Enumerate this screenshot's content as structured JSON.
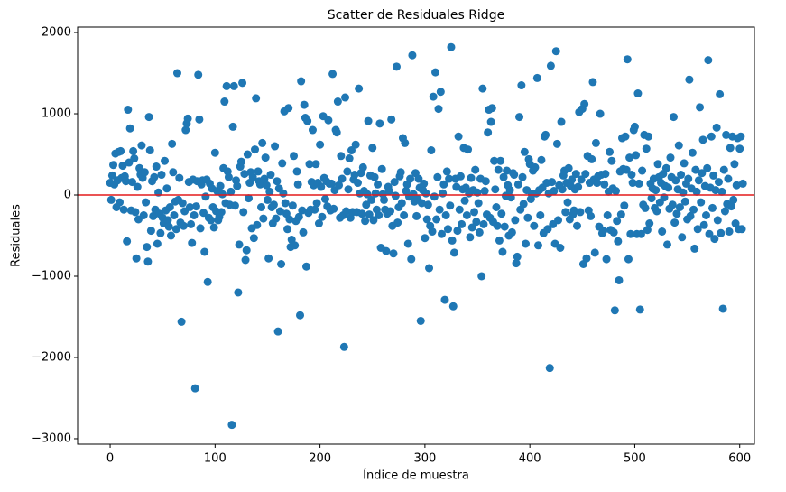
{
  "chart_data": {
    "type": "scatter",
    "title": "Scatter de Residuales Ridge",
    "x_label": "Índice de muestra",
    "y_label": "Residuales",
    "xlim": [
      -31,
      614
    ],
    "ylim": [
      -3067,
      2067
    ],
    "xticks": [
      0,
      100,
      200,
      300,
      400,
      500,
      600
    ],
    "yticks": [
      {
        "value": -3000,
        "label": "−3000"
      },
      {
        "value": -2000,
        "label": "−2000"
      },
      {
        "value": -1000,
        "label": "−1000"
      },
      0,
      1000,
      2000
    ],
    "hline": 0,
    "hline_color": "#e41a1c",
    "series": [
      {
        "color": "#1f77b4",
        "x": [
          0,
          1,
          2,
          3,
          4,
          5,
          6,
          7,
          8,
          9,
          10,
          11,
          12,
          13,
          14,
          15,
          16,
          17,
          18,
          19,
          20,
          21,
          22,
          23,
          24,
          25,
          26,
          27,
          28,
          29,
          30,
          31,
          32,
          33,
          34,
          35,
          36,
          37,
          38,
          39,
          40,
          41,
          42,
          43,
          44,
          45,
          46,
          47,
          48,
          49,
          50,
          51,
          52,
          53,
          54,
          55,
          56,
          57,
          58,
          59,
          60,
          61,
          62,
          63,
          64,
          65,
          66,
          67,
          68,
          69,
          70,
          71,
          72,
          73,
          74,
          75,
          76,
          77,
          78,
          79,
          80,
          81,
          82,
          83,
          84,
          85,
          86,
          87,
          88,
          89,
          90,
          91,
          92,
          93,
          94,
          95,
          96,
          97,
          98,
          99,
          100,
          101,
          102,
          103,
          104,
          105,
          106,
          107,
          108,
          109,
          110,
          111,
          112,
          113,
          114,
          115,
          116,
          117,
          118,
          119,
          120,
          121,
          122,
          123,
          124,
          125,
          126,
          127,
          128,
          129,
          130,
          131,
          132,
          133,
          134,
          135,
          136,
          137,
          138,
          139,
          140,
          141,
          142,
          143,
          144,
          145,
          146,
          147,
          148,
          149,
          150,
          151,
          152,
          153,
          154,
          155,
          156,
          157,
          158,
          159,
          160,
          161,
          162,
          163,
          164,
          165,
          166,
          167,
          168,
          169,
          170,
          171,
          172,
          173,
          174,
          175,
          176,
          177,
          178,
          179,
          180,
          181,
          182,
          183,
          184,
          185,
          186,
          187,
          188,
          189,
          190,
          191,
          192,
          193,
          194,
          195,
          196,
          197,
          198,
          199,
          200,
          201,
          202,
          203,
          204,
          205,
          206,
          207,
          208,
          209,
          210,
          211,
          212,
          213,
          214,
          215,
          216,
          217,
          218,
          219,
          220,
          221,
          222,
          223,
          224,
          225,
          226,
          227,
          228,
          229,
          230,
          231,
          232,
          233,
          234,
          235,
          236,
          237,
          238,
          239,
          240,
          241,
          242,
          243,
          244,
          245,
          246,
          247,
          248,
          249,
          250,
          251,
          252,
          253,
          254,
          255,
          256,
          257,
          258,
          259,
          260,
          261,
          262,
          263,
          264,
          265,
          266,
          267,
          268,
          269,
          270,
          271,
          272,
          273,
          274,
          275,
          276,
          277,
          278,
          279,
          280,
          281,
          282,
          283,
          284,
          285,
          286,
          287,
          288,
          289,
          290,
          291,
          292,
          293,
          294,
          295,
          296,
          297,
          298,
          299,
          300,
          301,
          302,
          303,
          304,
          305,
          306,
          307,
          308,
          309,
          310,
          311,
          312,
          313,
          314,
          315,
          316,
          317,
          318,
          319,
          320,
          321,
          322,
          323,
          324,
          325,
          326,
          327,
          328,
          329,
          330,
          331,
          332,
          333,
          334,
          335,
          336,
          337,
          338,
          339,
          340,
          341,
          342,
          343,
          344,
          345,
          346,
          347,
          348,
          349,
          350,
          351,
          352,
          353,
          354,
          355,
          356,
          357,
          358,
          359,
          360,
          361,
          362,
          363,
          364,
          365,
          366,
          367,
          368,
          369,
          370,
          371,
          372,
          373,
          374,
          375,
          376,
          377,
          378,
          379,
          380,
          381,
          382,
          383,
          384,
          385,
          386,
          387,
          388,
          389,
          390,
          391,
          392,
          393,
          394,
          395,
          396,
          397,
          398,
          399,
          400,
          401,
          402,
          403,
          404,
          405,
          406,
          407,
          408,
          409,
          410,
          411,
          412,
          413,
          414,
          415,
          416,
          417,
          418,
          419,
          420,
          421,
          422,
          423,
          424,
          425,
          426,
          427,
          428,
          429,
          430,
          431,
          432,
          433,
          434,
          435,
          436,
          437,
          438,
          439,
          440,
          441,
          442,
          443,
          444,
          445,
          446,
          447,
          448,
          449,
          450,
          451,
          452,
          453,
          454,
          455,
          456,
          457,
          458,
          459,
          460,
          461,
          462,
          463,
          464,
          465,
          466,
          467,
          468,
          469,
          470,
          471,
          472,
          473,
          474,
          475,
          476,
          477,
          478,
          479,
          480,
          481,
          482,
          483,
          484,
          485,
          486,
          487,
          488,
          489,
          490,
          491,
          492,
          493,
          494,
          495,
          496,
          497,
          498,
          499,
          500,
          501,
          502,
          503,
          504,
          505,
          506,
          507,
          508,
          509,
          510,
          511,
          512,
          513,
          514,
          515,
          516,
          517,
          518,
          519,
          520,
          521,
          522,
          523,
          524,
          525,
          526,
          527,
          528,
          529,
          530,
          531,
          532,
          533,
          534,
          535,
          536,
          537,
          538,
          539,
          540,
          541,
          542,
          543,
          544,
          545,
          546,
          547,
          548,
          549,
          550,
          551,
          552,
          553,
          554,
          555,
          556,
          557,
          558,
          559,
          560,
          561,
          562,
          563,
          564,
          565,
          566,
          567,
          568,
          569,
          570,
          571,
          572,
          573,
          574,
          575,
          576,
          577,
          578,
          579,
          580,
          581,
          582,
          583,
          584,
          585,
          586,
          587,
          588,
          589,
          590,
          591,
          592,
          593,
          594,
          595,
          596,
          597,
          598,
          599,
          600,
          601,
          602,
          603
        ],
        "values": [
          150,
          -60,
          240,
          370,
          130,
          510,
          -150,
          180,
          530,
          -90,
          540,
          210,
          360,
          -180,
          230,
          170,
          -570,
          1050,
          400,
          820,
          -190,
          160,
          540,
          450,
          -210,
          -780,
          100,
          -300,
          330,
          250,
          610,
          210,
          -250,
          280,
          -90,
          -640,
          -820,
          960,
          550,
          -440,
          170,
          -260,
          220,
          -180,
          350,
          -600,
          30,
          -230,
          -470,
          250,
          -280,
          -350,
          420,
          -190,
          80,
          -310,
          -390,
          -150,
          -500,
          630,
          280,
          -250,
          -80,
          -420,
          1500,
          -60,
          210,
          -340,
          -1560,
          -100,
          -380,
          -200,
          800,
          880,
          940,
          160,
          -150,
          -360,
          -590,
          190,
          -250,
          -2380,
          -140,
          170,
          1480,
          930,
          -410,
          130,
          180,
          -220,
          -700,
          -20,
          190,
          -1070,
          -280,
          140,
          -310,
          80,
          -150,
          -400,
          520,
          -200,
          50,
          -310,
          -270,
          110,
          -210,
          10,
          330,
          1150,
          -100,
          1340,
          290,
          220,
          -120,
          40,
          -2830,
          840,
          1340,
          -130,
          180,
          110,
          -1200,
          -610,
          350,
          410,
          1380,
          -210,
          260,
          -800,
          -680,
          500,
          -40,
          150,
          280,
          -410,
          220,
          -530,
          560,
          1190,
          -370,
          290,
          170,
          130,
          -150,
          640,
          -290,
          200,
          460,
          120,
          -60,
          -780,
          40,
          250,
          -150,
          -350,
          -120,
          600,
          -290,
          170,
          -1680,
          80,
          -200,
          -850,
          390,
          20,
          1030,
          -100,
          -230,
          -420,
          1070,
          -300,
          -640,
          -550,
          -130,
          480,
          -620,
          -320,
          290,
          130,
          -270,
          -1480,
          1400,
          -190,
          -460,
          1110,
          950,
          -880,
          910,
          -220,
          380,
          -180,
          160,
          800,
          120,
          -180,
          380,
          -100,
          150,
          -350,
          620,
          100,
          -270,
          970,
          210,
          -50,
          170,
          -140,
          920,
          140,
          -190,
          140,
          1490,
          -170,
          60,
          800,
          770,
          1150,
          120,
          -280,
          480,
          200,
          -250,
          -1870,
          1200,
          -200,
          290,
          70,
          450,
          -280,
          550,
          -210,
          190,
          250,
          620,
          -210,
          150,
          1310,
          20,
          270,
          -230,
          340,
          50,
          -320,
          -120,
          10,
          910,
          -240,
          240,
          -60,
          580,
          -310,
          220,
          20,
          -180,
          130,
          -250,
          880,
          -650,
          320,
          10,
          -60,
          -180,
          -690,
          -230,
          100,
          50,
          -200,
          930,
          -380,
          -720,
          160,
          -10,
          1580,
          -340,
          -150,
          230,
          280,
          -100,
          700,
          -250,
          640,
          50,
          130,
          -600,
          -20,
          200,
          -790,
          1720,
          10,
          -80,
          270,
          -260,
          -50,
          200,
          90,
          -1550,
          -100,
          60,
          140,
          -530,
          20,
          -300,
          -120,
          -900,
          -380,
          550,
          -450,
          1210,
          -20,
          1510,
          -300,
          220,
          1060,
          -180,
          1270,
          -480,
          20,
          130,
          -1290,
          -250,
          290,
          -420,
          200,
          -130,
          1820,
          -560,
          -1370,
          -710,
          200,
          100,
          -440,
          720,
          -180,
          230,
          -360,
          70,
          580,
          -70,
          90,
          -250,
          560,
          20,
          -520,
          210,
          -400,
          60,
          -210,
          310,
          -330,
          30,
          -100,
          -460,
          200,
          -1000,
          1310,
          -360,
          50,
          170,
          -240,
          770,
          1050,
          -280,
          900,
          1070,
          -330,
          420,
          70,
          -150,
          -380,
          310,
          -560,
          420,
          -230,
          -700,
          220,
          -390,
          -10,
          300,
          120,
          -500,
          60,
          -30,
          -460,
          270,
          250,
          -310,
          -840,
          -760,
          130,
          960,
          -180,
          1350,
          220,
          -110,
          530,
          -600,
          60,
          -280,
          440,
          380,
          -50,
          10,
          300,
          -380,
          340,
          20,
          1440,
          -620,
          60,
          -250,
          430,
          90,
          -470,
          720,
          740,
          150,
          -420,
          20,
          -2130,
          1590,
          160,
          -360,
          50,
          -600,
          1770,
          630,
          -310,
          120,
          -650,
          900,
          70,
          240,
          300,
          -210,
          150,
          -90,
          330,
          -300,
          110,
          190,
          -240,
          -190,
          70,
          260,
          -380,
          100,
          1020,
          -210,
          190,
          1060,
          -850,
          1120,
          260,
          -780,
          480,
          -190,
          150,
          -260,
          440,
          1390,
          190,
          -710,
          640,
          150,
          230,
          -390,
          1000,
          250,
          -470,
          -440,
          130,
          260,
          -790,
          -250,
          40,
          530,
          -430,
          420,
          80,
          -460,
          -1420,
          50,
          -320,
          -570,
          -1050,
          290,
          -240,
          700,
          320,
          -130,
          720,
          310,
          1670,
          -790,
          460,
          -480,
          250,
          150,
          800,
          840,
          490,
          -480,
          1250,
          140,
          -1410,
          -480,
          300,
          -120,
          740,
          -160,
          570,
          -430,
          720,
          -350,
          140,
          -40,
          80,
          200,
          -160,
          60,
          -200,
          380,
          220,
          -90,
          150,
          -450,
          260,
          -30,
          110,
          330,
          -610,
          90,
          -170,
          460,
          220,
          -120,
          960,
          -340,
          180,
          -230,
          70,
          610,
          -150,
          250,
          -520,
          30,
          390,
          -80,
          140,
          -300,
          200,
          1420,
          -260,
          80,
          520,
          -180,
          -660,
          310,
          40,
          -420,
          180,
          1080,
          -90,
          270,
          680,
          -370,
          110,
          -250,
          330,
          1660,
          -480,
          90,
          720,
          -160,
          240,
          -540,
          60,
          830,
          -310,
          160,
          1240,
          -470,
          40,
          -1400,
          310,
          -200,
          740,
          -110,
          200,
          -450,
          580,
          -140,
          720,
          -60,
          380,
          -350,
          120,
          700,
          -420,
          570,
          720,
          -420,
          140
        ]
      }
    ]
  }
}
